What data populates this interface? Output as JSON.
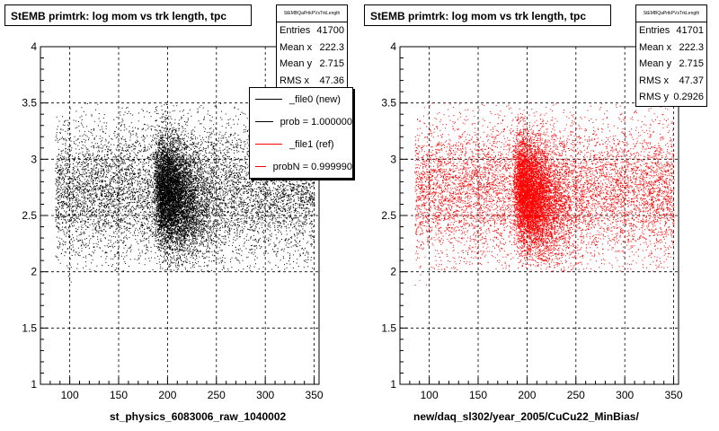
{
  "chart_data": [
    {
      "type": "scatter",
      "title": "StEMB primtrk: log mom vs trk length, tpc",
      "xlabel": "st_physics_6083006_raw_1040002",
      "ylabel": "",
      "xlim": [
        70,
        355
      ],
      "ylim": [
        1,
        4
      ],
      "xticks": [
        "100",
        "150",
        "200",
        "250",
        "300",
        "350"
      ],
      "yticks": [
        "1",
        "1.5",
        "2",
        "2.5",
        "3",
        "3.5",
        "4"
      ],
      "grid": true,
      "color": "#000000",
      "stats": {
        "title": "StEMBQaPrtkPVsTrkLength",
        "rows": [
          {
            "label": "Entries",
            "value": "41700"
          },
          {
            "label": "Mean x",
            "value": "222.3"
          },
          {
            "label": "Mean y",
            "value": "2.715"
          },
          {
            "label": "RMS x",
            "value": "47.36"
          }
        ]
      },
      "legend": {
        "placement": "top-right",
        "entries": [
          {
            "label": "_file0 (new)",
            "color": "#000000"
          },
          {
            "label": "prob = 1.000000",
            "color": "#000000"
          },
          {
            "label": "_file1 (ref)",
            "color": "#ff0000"
          },
          {
            "label": "probN = 0.999990",
            "color": "#ff0000"
          }
        ]
      }
    },
    {
      "type": "scatter",
      "title": "StEMB primtrk: log mom vs trk length, tpc",
      "xlabel": "new/daq_sl302/year_2005/CuCu22_MinBias/",
      "ylabel": "",
      "xlim": [
        70,
        355
      ],
      "ylim": [
        1,
        4
      ],
      "xticks": [
        "100",
        "150",
        "200",
        "250",
        "300",
        "350"
      ],
      "yticks": [
        "1",
        "1.5",
        "2",
        "2.5",
        "3",
        "3.5",
        "4"
      ],
      "grid": true,
      "color": "#ff0000",
      "stats": {
        "title": "StEMBQaPrtkPVsTrkLength",
        "rows": [
          {
            "label": "Entries",
            "value": "41701"
          },
          {
            "label": "Mean x",
            "value": "222.3"
          },
          {
            "label": "Mean y",
            "value": "2.715"
          },
          {
            "label": "RMS x",
            "value": "47.37"
          },
          {
            "label": "RMS y",
            "value": "0.2926"
          }
        ]
      }
    }
  ]
}
